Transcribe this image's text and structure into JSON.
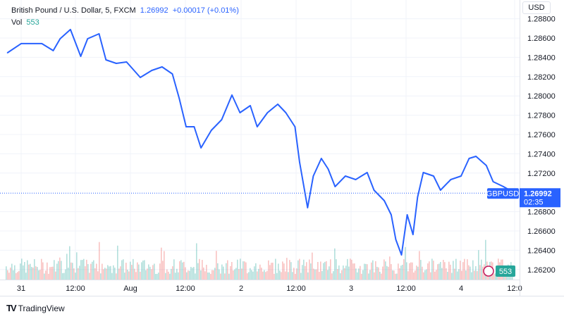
{
  "header": {
    "symbol": "British Pound / U.S. Dollar, 5, FXCM",
    "last": "1.26992",
    "change": "+0.00017 (+0.01%)",
    "vol_label": "Vol",
    "vol_value": "553"
  },
  "currency_button": "USD",
  "brand": "TradingView",
  "colors": {
    "line": "#2962ff",
    "vol_up": "#26a69a",
    "vol_down": "#ef5350"
  },
  "chart_data": {
    "type": "line",
    "series": [
      {
        "name": "GBPUSD",
        "x": [
          "07-30 21:00",
          "07-31 00:00",
          "07-31 04:30",
          "07-31 07:00",
          "07-31 08:30",
          "07-31 10:45",
          "07-31 13:00",
          "07-31 14:30",
          "07-31 17:00",
          "07-31 18:30",
          "07-31 20:45",
          "07-31 23:00",
          "08-01 02:00",
          "08-01 04:30",
          "08-01 06:45",
          "08-01 09:00",
          "08-01 10:30",
          "08-01 12:00",
          "08-01 13:45",
          "08-01 15:15",
          "08-01 17:30",
          "08-01 19:45",
          "08-01 22:00",
          "08-01 23:45",
          "08-02 02:00",
          "08-02 03:30",
          "08-02 05:45",
          "08-02 08:00",
          "08-02 09:45",
          "08-02 11:45",
          "08-02 12:45",
          "08-02 14:30",
          "08-02 15:45",
          "08-02 17:30",
          "08-02 19:00",
          "08-02 20:30",
          "08-02 22:45",
          "08-03 01:00",
          "08-03 03:30",
          "08-03 05:00",
          "08-03 07:15",
          "08-03 08:45",
          "08-03 09:45",
          "08-03 11:00",
          "08-03 12:15",
          "08-03 13:30",
          "08-03 14:30",
          "08-03 15:45",
          "08-03 18:00",
          "08-03 19:30",
          "08-03 21:45",
          "08-04 00:00",
          "08-04 01:45",
          "08-04 03:15",
          "08-04 05:30",
          "08-04 07:00",
          "08-04 09:15",
          "08-04 11:45"
        ],
        "values": [
          1.28447,
          1.28542,
          1.28542,
          1.28469,
          1.28593,
          1.28688,
          1.2841,
          1.28593,
          1.28644,
          1.28374,
          1.28337,
          1.28352,
          1.28191,
          1.28264,
          1.28301,
          1.28228,
          1.27972,
          1.2768,
          1.2768,
          1.27461,
          1.27644,
          1.27753,
          1.28009,
          1.27826,
          1.27899,
          1.2768,
          1.27826,
          1.27914,
          1.27826,
          1.2768,
          1.27315,
          1.26841,
          1.27169,
          1.27352,
          1.27242,
          1.2706,
          1.27169,
          1.27133,
          1.27206,
          1.27023,
          1.26914,
          1.26768,
          1.26512,
          1.26352,
          1.26768,
          1.26563,
          1.2695,
          1.27206,
          1.27169,
          1.27023,
          1.27133,
          1.27169,
          1.27352,
          1.27374,
          1.27279,
          1.27111,
          1.2706,
          1.26992
        ]
      }
    ],
    "y_ticks": [
      "1.28800",
      "1.28600",
      "1.28400",
      "1.28200",
      "1.28000",
      "1.27800",
      "1.27600",
      "1.27400",
      "1.27200",
      "1.26800",
      "1.26600",
      "1.26400",
      "1.26200"
    ],
    "ylim": [
      1.2615,
      1.2885
    ],
    "x_ticks": [
      "31",
      "12:00",
      "Aug",
      "12:00",
      "2",
      "12:00",
      "3",
      "12:00",
      "4",
      "12:0"
    ],
    "last_price_label": {
      "symbol": "GBPUSD",
      "price": "1.26992",
      "countdown": "02:35"
    },
    "volume_label": "553",
    "grid": true
  }
}
